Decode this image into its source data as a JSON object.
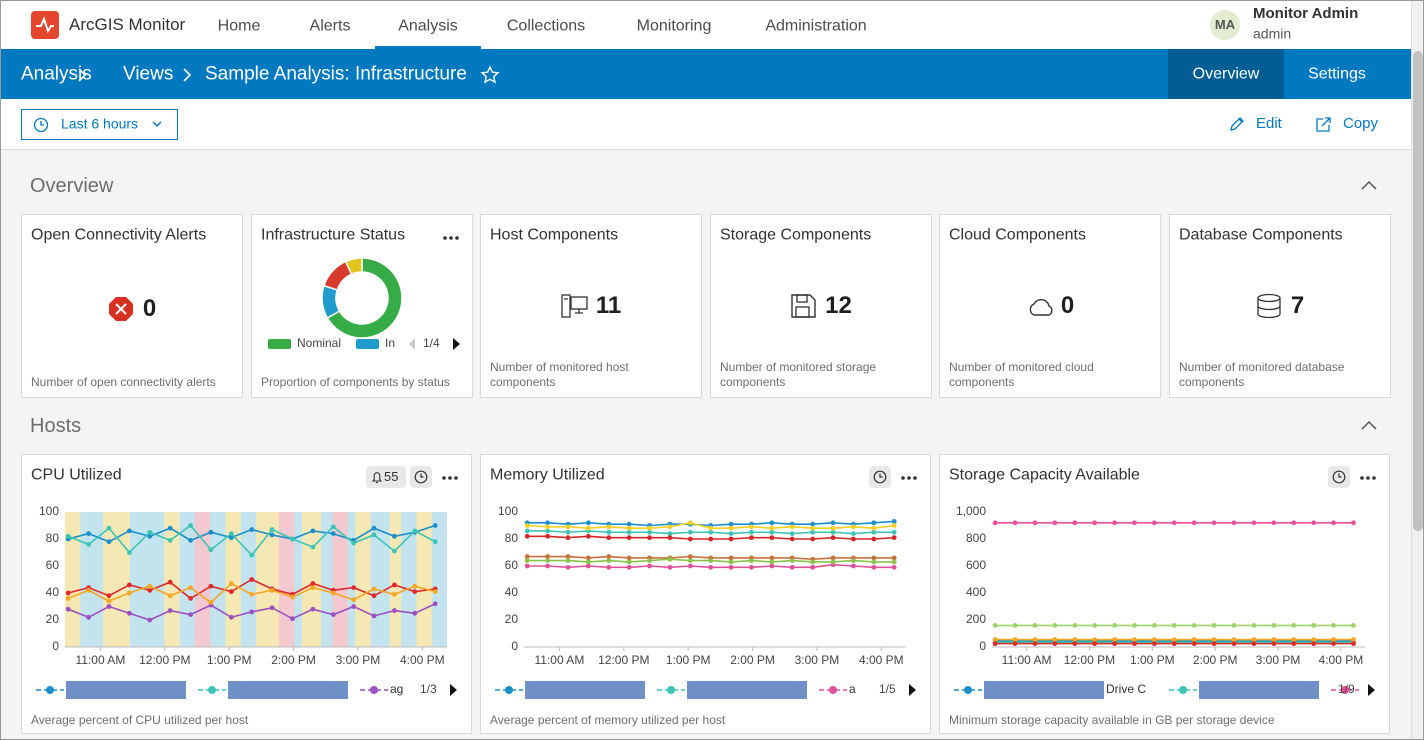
{
  "nav": {
    "app": "ArcGIS Monitor",
    "items": [
      "Home",
      "Alerts",
      "Analysis",
      "Collections",
      "Monitoring",
      "Administration"
    ],
    "active": 2,
    "user": {
      "initials": "MA",
      "name": "Monitor Admin",
      "role": "admin"
    }
  },
  "breadcrumb": [
    "Analysis",
    "Views",
    "Sample Analysis: Infrastructure"
  ],
  "tabs": [
    "Overview",
    "Settings"
  ],
  "active_tab": 0,
  "toolbar": {
    "time_range": "Last 6 hours",
    "actions": [
      "Edit",
      "Copy"
    ]
  },
  "sections": [
    {
      "title": "Overview"
    },
    {
      "title": "Hosts"
    }
  ],
  "cards": [
    {
      "title": "Open Connectivity Alerts",
      "value": 0,
      "description": "Number of open connectivity alerts"
    },
    {
      "title": "Infrastructure Status",
      "description": "Proportion of components by status"
    },
    {
      "title": "Host Components",
      "value": 11,
      "description": "Number of monitored host components"
    },
    {
      "title": "Storage Components",
      "value": 12,
      "description": "Number of monitored storage components"
    },
    {
      "title": "Cloud Components",
      "value": 0,
      "description": "Number of monitored cloud components"
    },
    {
      "title": "Database Components",
      "value": 7,
      "description": "Number of monitored database components"
    }
  ],
  "chart_data": [
    {
      "type": "pie",
      "donut": true,
      "categories": [
        "Nominal",
        "In",
        null,
        null
      ],
      "values": [
        20,
        4,
        4,
        2
      ],
      "colors": [
        "#35ac46",
        "#1f9bce",
        "#d83a2c",
        "#e2c21c"
      ],
      "legend_page": "1/4"
    },
    {
      "type": "line",
      "title": "CPU Utilized",
      "alert_count": 55,
      "description": "Average percent of CPU utilized per host",
      "x": [
        630,
        649,
        668,
        687,
        706,
        725,
        744,
        763,
        782,
        801,
        820,
        839,
        858,
        877,
        896,
        915,
        934,
        953,
        972
      ],
      "xlim": [
        627,
        983
      ],
      "xticks": [
        {
          "value": 660,
          "label": "11:00 AM"
        },
        {
          "value": 720,
          "label": "12:00 PM"
        },
        {
          "value": 780,
          "label": "1:00 PM"
        },
        {
          "value": 840,
          "label": "2:00 PM"
        },
        {
          "value": 900,
          "label": "3:00 PM"
        },
        {
          "value": 960,
          "label": "4:00 PM"
        }
      ],
      "ylim": [
        0,
        100
      ],
      "yticks": [
        0,
        20,
        40,
        60,
        80,
        100
      ],
      "legend_page": "1/3",
      "series": [
        {
          "color": "#1a8fc9",
          "values": [
            80,
            84,
            78,
            86,
            82,
            88,
            79,
            85,
            81,
            87,
            83,
            80,
            86,
            84,
            79,
            88,
            82,
            85,
            90
          ]
        },
        {
          "color": "#3cc4b4",
          "values": [
            82,
            76,
            88,
            70,
            85,
            79,
            90,
            72,
            84,
            68,
            87,
            80,
            74,
            89,
            77,
            83,
            71,
            86,
            78
          ]
        },
        {
          "name": "ag",
          "color": "#9b4fc0",
          "values": [
            28,
            22,
            30,
            25,
            20,
            27,
            24,
            31,
            22,
            26,
            29,
            21,
            28,
            24,
            30,
            23,
            27,
            25,
            32
          ]
        },
        {
          "color": "#e02a2a",
          "values": [
            40,
            44,
            38,
            46,
            42,
            48,
            36,
            45,
            41,
            50,
            43,
            39,
            47,
            42,
            44,
            38,
            46,
            41,
            43
          ]
        },
        {
          "color": "#f5a623",
          "values": [
            36,
            42,
            34,
            40,
            45,
            38,
            44,
            33,
            47,
            39,
            42,
            37,
            44,
            40,
            35,
            43,
            39,
            45,
            41
          ]
        }
      ]
    },
    {
      "type": "line",
      "title": "Memory Utilized",
      "description": "Average percent of memory utilized per host",
      "x": [
        630,
        649,
        668,
        687,
        706,
        725,
        744,
        763,
        782,
        801,
        820,
        839,
        858,
        877,
        896,
        915,
        934,
        953,
        972
      ],
      "xlim": [
        627,
        983
      ],
      "xticks": [
        {
          "value": 660,
          "label": "11:00 AM"
        },
        {
          "value": 720,
          "label": "12:00 PM"
        },
        {
          "value": 780,
          "label": "1:00 PM"
        },
        {
          "value": 840,
          "label": "2:00 PM"
        },
        {
          "value": 900,
          "label": "3:00 PM"
        },
        {
          "value": 960,
          "label": "4:00 PM"
        }
      ],
      "ylim": [
        0,
        100
      ],
      "yticks": [
        0,
        20,
        40,
        60,
        80,
        100
      ],
      "legend_page": "1/5",
      "series": [
        {
          "color": "#1a8fc9",
          "values": [
            92,
            92,
            91,
            92,
            91,
            91,
            90,
            91,
            91,
            90,
            91,
            91,
            92,
            91,
            91,
            92,
            91,
            92,
            93
          ]
        },
        {
          "color": "#3cc4b4",
          "values": [
            86,
            86,
            85,
            86,
            85,
            85,
            85,
            84,
            85,
            85,
            84,
            85,
            85,
            84,
            85,
            85,
            84,
            85,
            85
          ]
        },
        {
          "name": "a",
          "color": "#e0509a",
          "values": [
            60,
            60,
            59,
            60,
            59,
            59,
            60,
            59,
            60,
            59,
            59,
            59,
            60,
            59,
            59,
            61,
            60,
            59,
            59
          ]
        },
        {
          "color": "#f2d024",
          "values": [
            90,
            89,
            89,
            88,
            89,
            88,
            88,
            89,
            92,
            88,
            88,
            89,
            88,
            89,
            88,
            88,
            89,
            88,
            90
          ]
        },
        {
          "color": "#d62728",
          "values": [
            82,
            82,
            81,
            82,
            81,
            81,
            81,
            81,
            80,
            80,
            80,
            81,
            81,
            80,
            80,
            81,
            80,
            80,
            81
          ]
        },
        {
          "color": "#c8703a",
          "values": [
            67,
            67,
            67,
            66,
            67,
            66,
            66,
            66,
            67,
            66,
            66,
            66,
            66,
            66,
            65,
            66,
            66,
            66,
            66
          ]
        },
        {
          "color": "#8bc34a",
          "values": [
            64,
            64,
            64,
            63,
            64,
            63,
            64,
            65,
            64,
            64,
            63,
            64,
            63,
            64,
            63,
            63,
            64,
            63,
            63
          ]
        }
      ]
    },
    {
      "type": "line",
      "title": "Storage Capacity Available",
      "description": "Minimum storage capacity available in GB per storage device",
      "x": [
        630,
        649,
        668,
        687,
        706,
        725,
        744,
        763,
        782,
        801,
        820,
        839,
        858,
        877,
        896,
        915,
        934,
        953,
        972
      ],
      "xlim": [
        627,
        983
      ],
      "xticks": [
        {
          "value": 660,
          "label": "11:00 AM"
        },
        {
          "value": 720,
          "label": "12:00 PM"
        },
        {
          "value": 780,
          "label": "1:00 PM"
        },
        {
          "value": 840,
          "label": "2:00 PM"
        },
        {
          "value": 900,
          "label": "3:00 PM"
        },
        {
          "value": 960,
          "label": "4:00 PM"
        }
      ],
      "ylim": [
        0,
        1000
      ],
      "yticks": [
        0,
        200,
        400,
        600,
        800,
        {
          "value": 1000,
          "label": "1,000"
        }
      ],
      "legend_page": "1/9",
      "series": [
        {
          "name": "Drive C",
          "color": "#1a8fc9",
          "values": [
            45,
            45,
            45,
            45,
            45,
            45,
            45,
            45,
            45,
            45,
            45,
            45,
            45,
            45,
            45,
            45,
            45,
            45,
            45
          ]
        },
        {
          "color": "#3cc4b4",
          "values": [
            35,
            35,
            35,
            35,
            35,
            35,
            35,
            35,
            35,
            35,
            35,
            35,
            35,
            35,
            35,
            35,
            35,
            35,
            35
          ]
        },
        {
          "color": "#e8509a",
          "values": [
            920,
            920,
            920,
            920,
            920,
            920,
            920,
            920,
            920,
            920,
            920,
            920,
            920,
            920,
            920,
            920,
            920,
            920,
            920
          ]
        },
        {
          "color": "#9ed36a",
          "values": [
            160,
            160,
            160,
            160,
            160,
            160,
            160,
            160,
            160,
            160,
            160,
            160,
            160,
            160,
            160,
            160,
            160,
            160,
            160
          ]
        },
        {
          "color": "#f5a623",
          "values": [
            55,
            55,
            54,
            55,
            55,
            54,
            55,
            55,
            55,
            54,
            55,
            55,
            54,
            55,
            55,
            55,
            54,
            55,
            55
          ]
        },
        {
          "color": "#e02a2a",
          "values": [
            25,
            25,
            25,
            25,
            25,
            25,
            25,
            25,
            25,
            25,
            25,
            25,
            25,
            25,
            25,
            25,
            25,
            25,
            25
          ]
        }
      ]
    }
  ]
}
